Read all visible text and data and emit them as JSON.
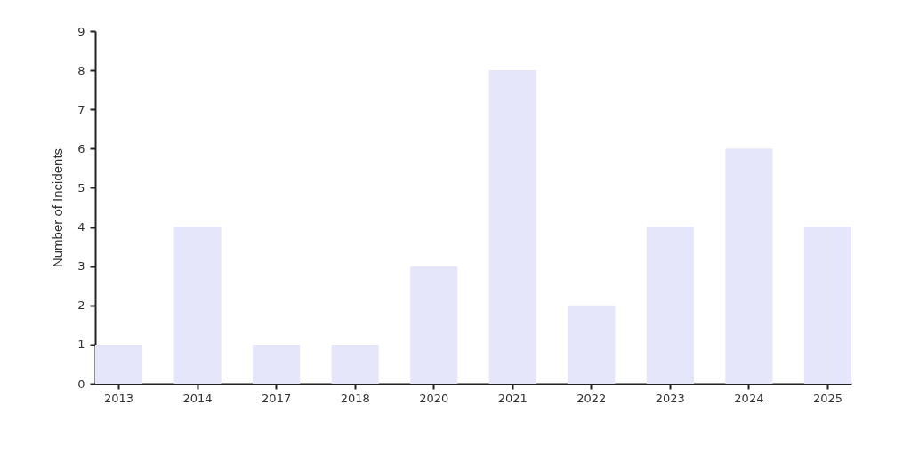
{
  "chart_data": {
    "type": "bar",
    "ylabel": "Number of Incidents",
    "categories": [
      "2013",
      "2014",
      "2017",
      "2018",
      "2020",
      "2021",
      "2022",
      "2023",
      "2024",
      "2025"
    ],
    "values": [
      1,
      4,
      1,
      1,
      3,
      8,
      2,
      4,
      6,
      4
    ],
    "color": "#e6e6fa",
    "ylim": [
      0,
      9
    ],
    "yticks": [
      0,
      1,
      2,
      3,
      4,
      5,
      6,
      7,
      8,
      9
    ],
    "grid": false
  }
}
